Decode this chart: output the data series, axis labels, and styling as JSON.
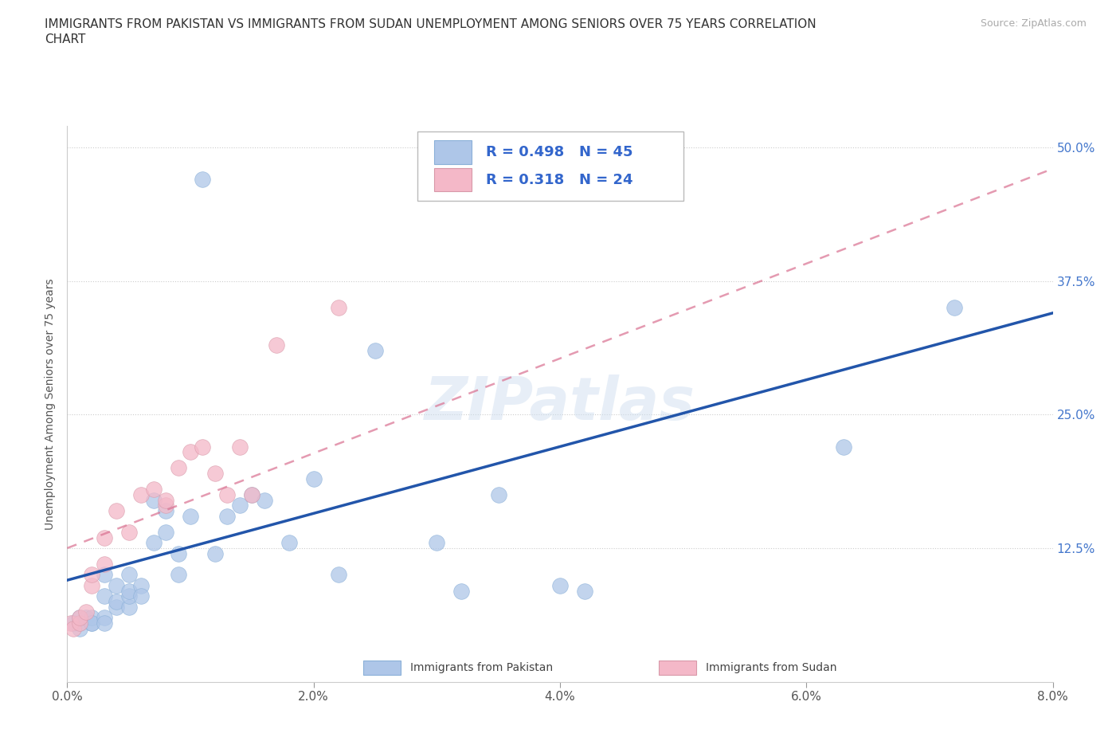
{
  "title_line1": "IMMIGRANTS FROM PAKISTAN VS IMMIGRANTS FROM SUDAN UNEMPLOYMENT AMONG SENIORS OVER 75 YEARS CORRELATION",
  "title_line2": "CHART",
  "source": "Source: ZipAtlas.com",
  "ylabel": "Unemployment Among Seniors over 75 years",
  "xlim": [
    0.0,
    0.08
  ],
  "ylim": [
    0.0,
    0.52
  ],
  "xticks": [
    0.0,
    0.02,
    0.04,
    0.06,
    0.08
  ],
  "yticks": [
    0.0,
    0.125,
    0.25,
    0.375,
    0.5
  ],
  "xticklabels": [
    "0.0%",
    "2.0%",
    "4.0%",
    "6.0%",
    "8.0%"
  ],
  "yticklabels": [
    "",
    "12.5%",
    "25.0%",
    "37.5%",
    "50.0%"
  ],
  "background_color": "#ffffff",
  "grid_color": "#cccccc",
  "pakistan_color": "#aec6e8",
  "sudan_color": "#f4b8c8",
  "pakistan_line_color": "#2255aa",
  "sudan_line_color": "#d97090",
  "R_pakistan": 0.498,
  "N_pakistan": 45,
  "R_sudan": 0.318,
  "N_sudan": 24,
  "watermark": "ZIPatlas",
  "pakistan_line_y0": 0.095,
  "pakistan_line_y1": 0.345,
  "sudan_line_y0": 0.125,
  "sudan_line_y1": 0.48,
  "pakistan_x": [
    0.0005,
    0.001,
    0.001,
    0.001,
    0.0015,
    0.002,
    0.002,
    0.002,
    0.003,
    0.003,
    0.003,
    0.003,
    0.004,
    0.004,
    0.004,
    0.005,
    0.005,
    0.005,
    0.005,
    0.006,
    0.006,
    0.007,
    0.007,
    0.008,
    0.008,
    0.009,
    0.009,
    0.01,
    0.011,
    0.012,
    0.013,
    0.014,
    0.015,
    0.016,
    0.018,
    0.02,
    0.022,
    0.025,
    0.03,
    0.032,
    0.035,
    0.04,
    0.042,
    0.063,
    0.072
  ],
  "pakistan_y": [
    0.055,
    0.06,
    0.055,
    0.05,
    0.06,
    0.055,
    0.06,
    0.055,
    0.06,
    0.055,
    0.08,
    0.1,
    0.07,
    0.075,
    0.09,
    0.07,
    0.08,
    0.085,
    0.1,
    0.09,
    0.08,
    0.17,
    0.13,
    0.16,
    0.14,
    0.1,
    0.12,
    0.155,
    0.47,
    0.12,
    0.155,
    0.165,
    0.175,
    0.17,
    0.13,
    0.19,
    0.1,
    0.31,
    0.13,
    0.085,
    0.175,
    0.09,
    0.085,
    0.22,
    0.35
  ],
  "sudan_x": [
    0.0003,
    0.0005,
    0.001,
    0.001,
    0.0015,
    0.002,
    0.002,
    0.003,
    0.003,
    0.004,
    0.005,
    0.006,
    0.007,
    0.008,
    0.008,
    0.009,
    0.01,
    0.011,
    0.012,
    0.013,
    0.014,
    0.015,
    0.017,
    0.022
  ],
  "sudan_y": [
    0.055,
    0.05,
    0.055,
    0.06,
    0.065,
    0.09,
    0.1,
    0.11,
    0.135,
    0.16,
    0.14,
    0.175,
    0.18,
    0.165,
    0.17,
    0.2,
    0.215,
    0.22,
    0.195,
    0.175,
    0.22,
    0.175,
    0.315,
    0.35
  ]
}
